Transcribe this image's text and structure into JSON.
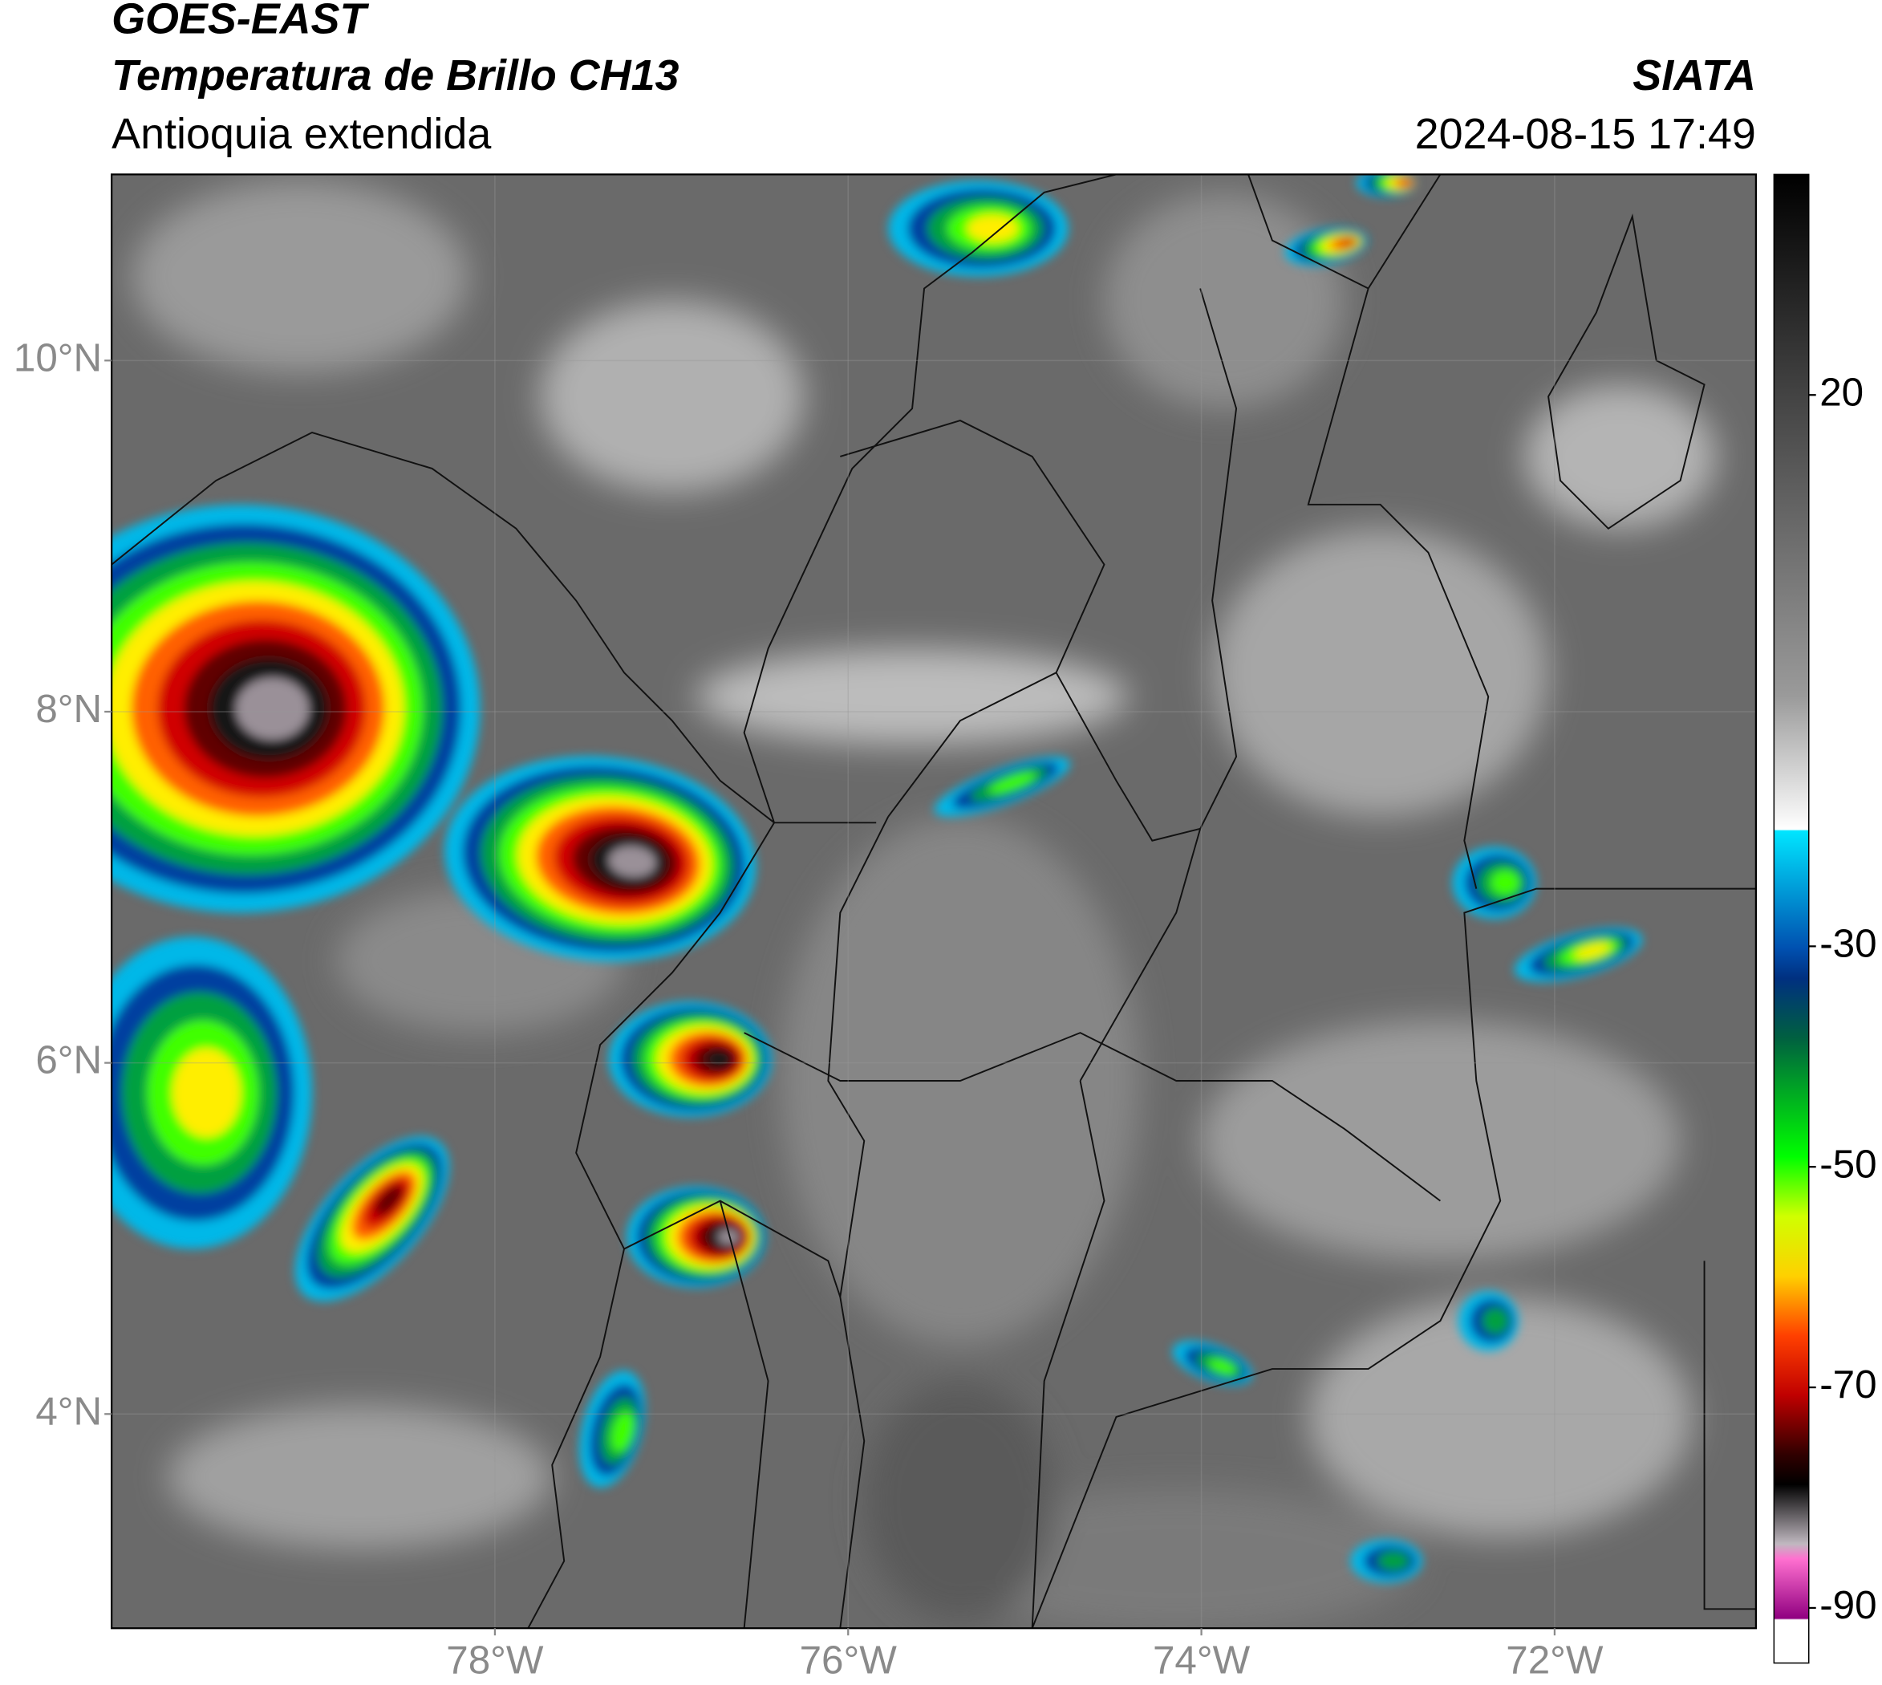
{
  "header": {
    "satellite": "GOES-EAST",
    "product": "Temperatura de Brillo CH13",
    "region": "Antioquia extendida",
    "agency": "SIATA",
    "datetime": "2024-08-15 17:49"
  },
  "map": {
    "lonlim": [
      -80.17,
      -70.86
    ],
    "latlim": [
      2.78,
      11.06
    ],
    "lat_ticks": [
      {
        "value": 10,
        "label": "10°N"
      },
      {
        "value": 8,
        "label": "8°N"
      },
      {
        "value": 6,
        "label": "6°N"
      },
      {
        "value": 4,
        "label": "4°N"
      }
    ],
    "lon_ticks": [
      {
        "value": -78,
        "label": "78°W"
      },
      {
        "value": -76,
        "label": "76°W"
      },
      {
        "value": -74,
        "label": "74°W"
      },
      {
        "value": -72,
        "label": "72°W"
      }
    ]
  },
  "colorbar": {
    "lim": [
      -95,
      40
    ],
    "ticks": [
      20,
      -30,
      -50,
      -70,
      -90
    ]
  }
}
